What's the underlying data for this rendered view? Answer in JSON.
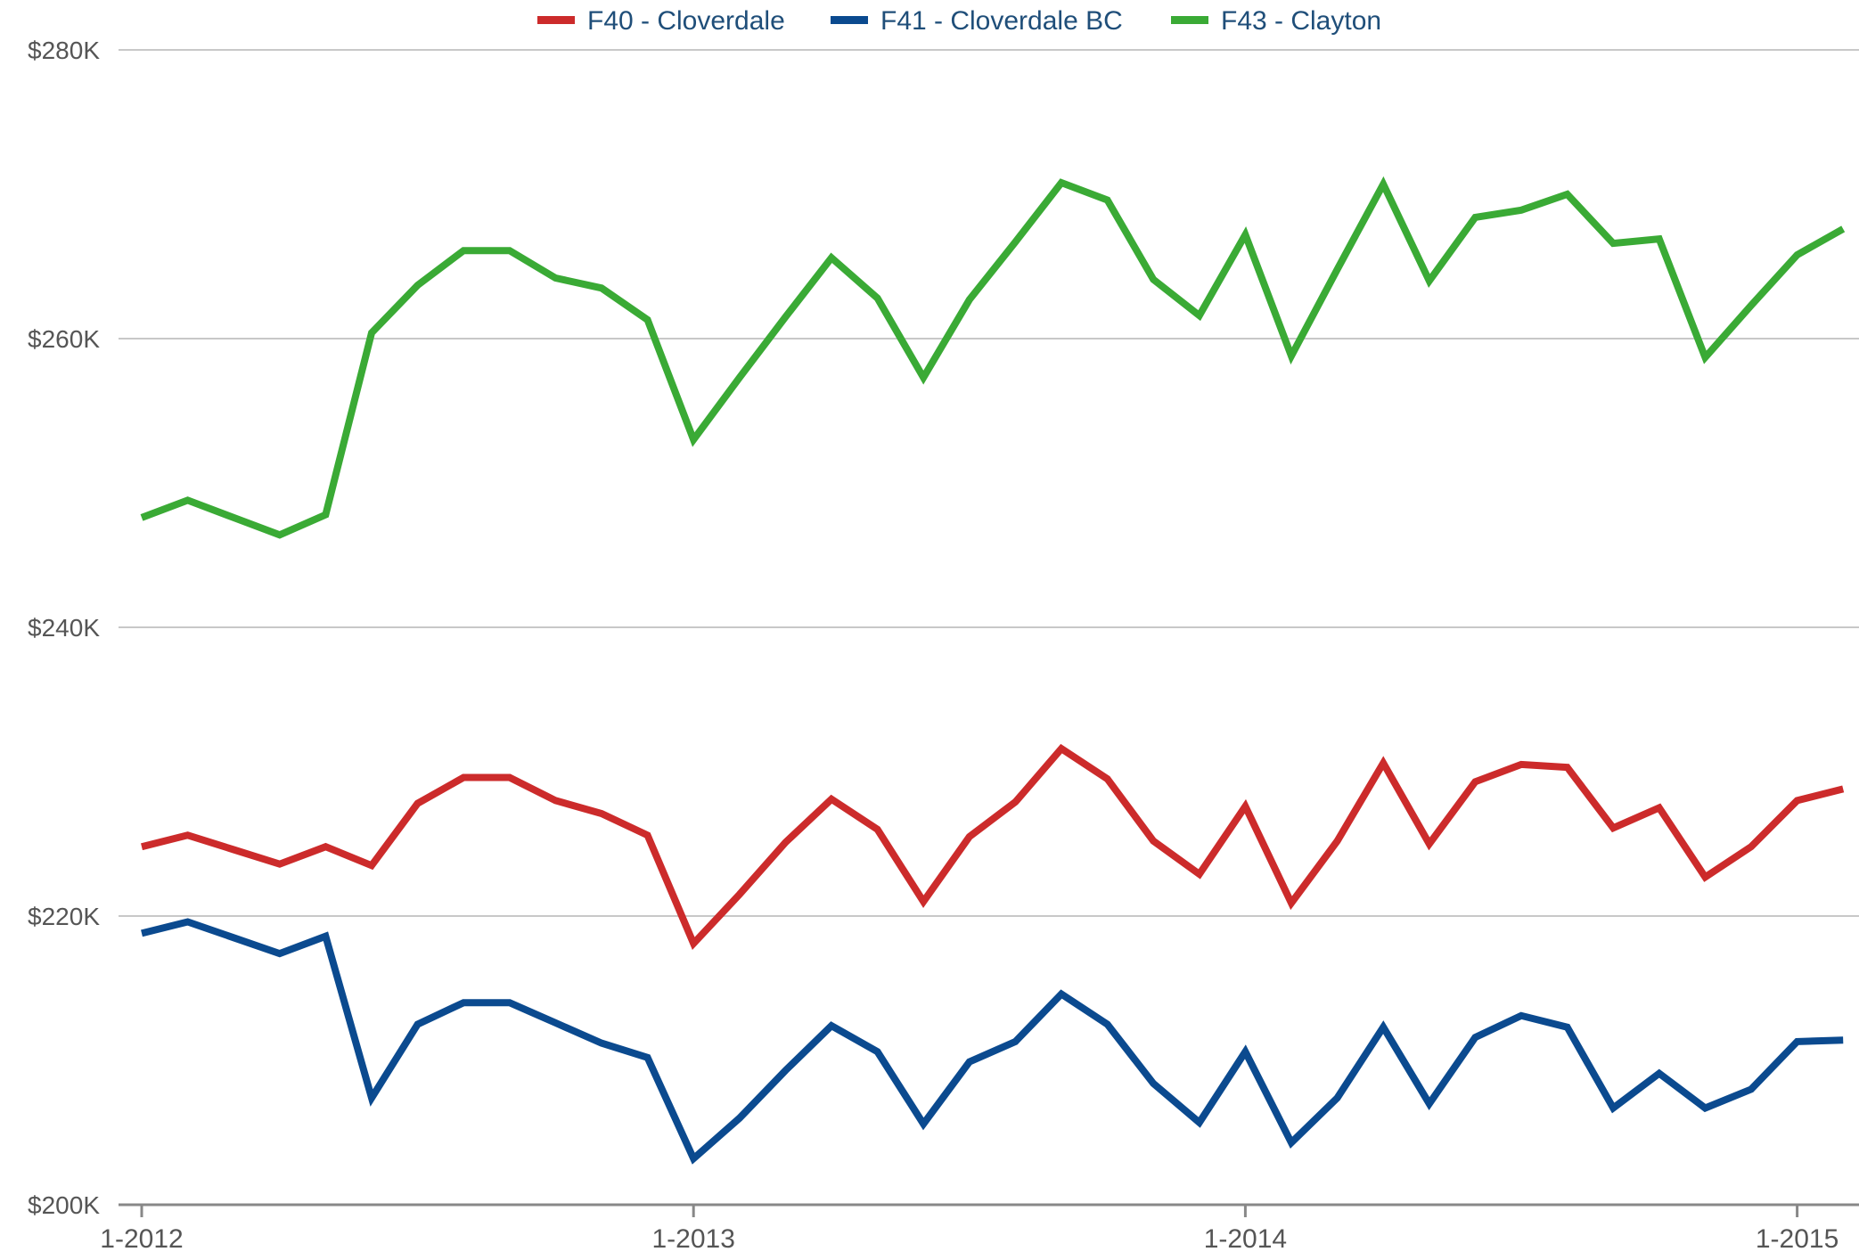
{
  "chart_data": {
    "type": "line",
    "title": "",
    "xlabel": "",
    "ylabel": "",
    "ylim": [
      200000,
      280000
    ],
    "y_ticks": [
      200000,
      220000,
      240000,
      260000,
      280000
    ],
    "y_tick_labels": [
      "$200K",
      "$220K",
      "$240K",
      "$260K",
      "$280K"
    ],
    "x_ticks": [
      "2012-01",
      "2013-01",
      "2014-01",
      "2015-01"
    ],
    "x_tick_labels": [
      "1-2012",
      "1-2013",
      "1-2014",
      "1-2015"
    ],
    "grid": true,
    "legend": "top-center",
    "x": [
      "2012-01",
      "2012-02",
      "2012-03",
      "2012-04",
      "2012-05",
      "2012-06",
      "2012-07",
      "2012-08",
      "2012-09",
      "2012-10",
      "2012-11",
      "2012-12",
      "2013-01",
      "2013-02",
      "2013-03",
      "2013-04",
      "2013-05",
      "2013-06",
      "2013-07",
      "2013-08",
      "2013-09",
      "2013-10",
      "2013-11",
      "2013-12",
      "2014-01",
      "2014-02",
      "2014-03",
      "2014-04",
      "2014-05",
      "2014-06",
      "2014-07",
      "2014-08",
      "2014-09",
      "2014-10",
      "2014-11",
      "2014-12",
      "2015-01",
      "2015-02"
    ],
    "series": [
      {
        "name": "F40 - Cloverdale",
        "color": "#cc2b2b",
        "values": [
          224800,
          225600,
          224600,
          223600,
          224800,
          223500,
          227800,
          229600,
          229600,
          228000,
          227100,
          225600,
          218100,
          221500,
          225100,
          228100,
          226000,
          221000,
          225500,
          227900,
          231600,
          229500,
          225200,
          222900,
          227600,
          220900,
          225200,
          230600,
          225000,
          229300,
          230500,
          230300,
          226100,
          227500,
          222700,
          224800,
          228000,
          228800
        ]
      },
      {
        "name": "F41 - Cloverdale BC",
        "color": "#0b4a8f",
        "values": [
          218800,
          219600,
          218500,
          217400,
          218600,
          207400,
          212500,
          214000,
          214000,
          212600,
          211200,
          210200,
          203200,
          206000,
          209300,
          212400,
          210600,
          205600,
          209900,
          211300,
          214600,
          212500,
          208400,
          205700,
          210600,
          204300,
          207400,
          212300,
          207000,
          211600,
          213100,
          212300,
          206700,
          209100,
          206700,
          208000,
          211300,
          211400
        ]
      },
      {
        "name": "F43 - Clayton",
        "color": "#3aaa35",
        "values": [
          247600,
          248800,
          247600,
          246400,
          247800,
          260400,
          263700,
          266100,
          266100,
          264200,
          263500,
          261300,
          253000,
          257300,
          261500,
          265600,
          262800,
          257300,
          262700,
          266700,
          270800,
          269600,
          264100,
          261600,
          267200,
          258800,
          264800,
          270700,
          264000,
          268400,
          268900,
          270000,
          266600,
          266900,
          258700,
          262300,
          265800,
          267600
        ]
      }
    ]
  }
}
